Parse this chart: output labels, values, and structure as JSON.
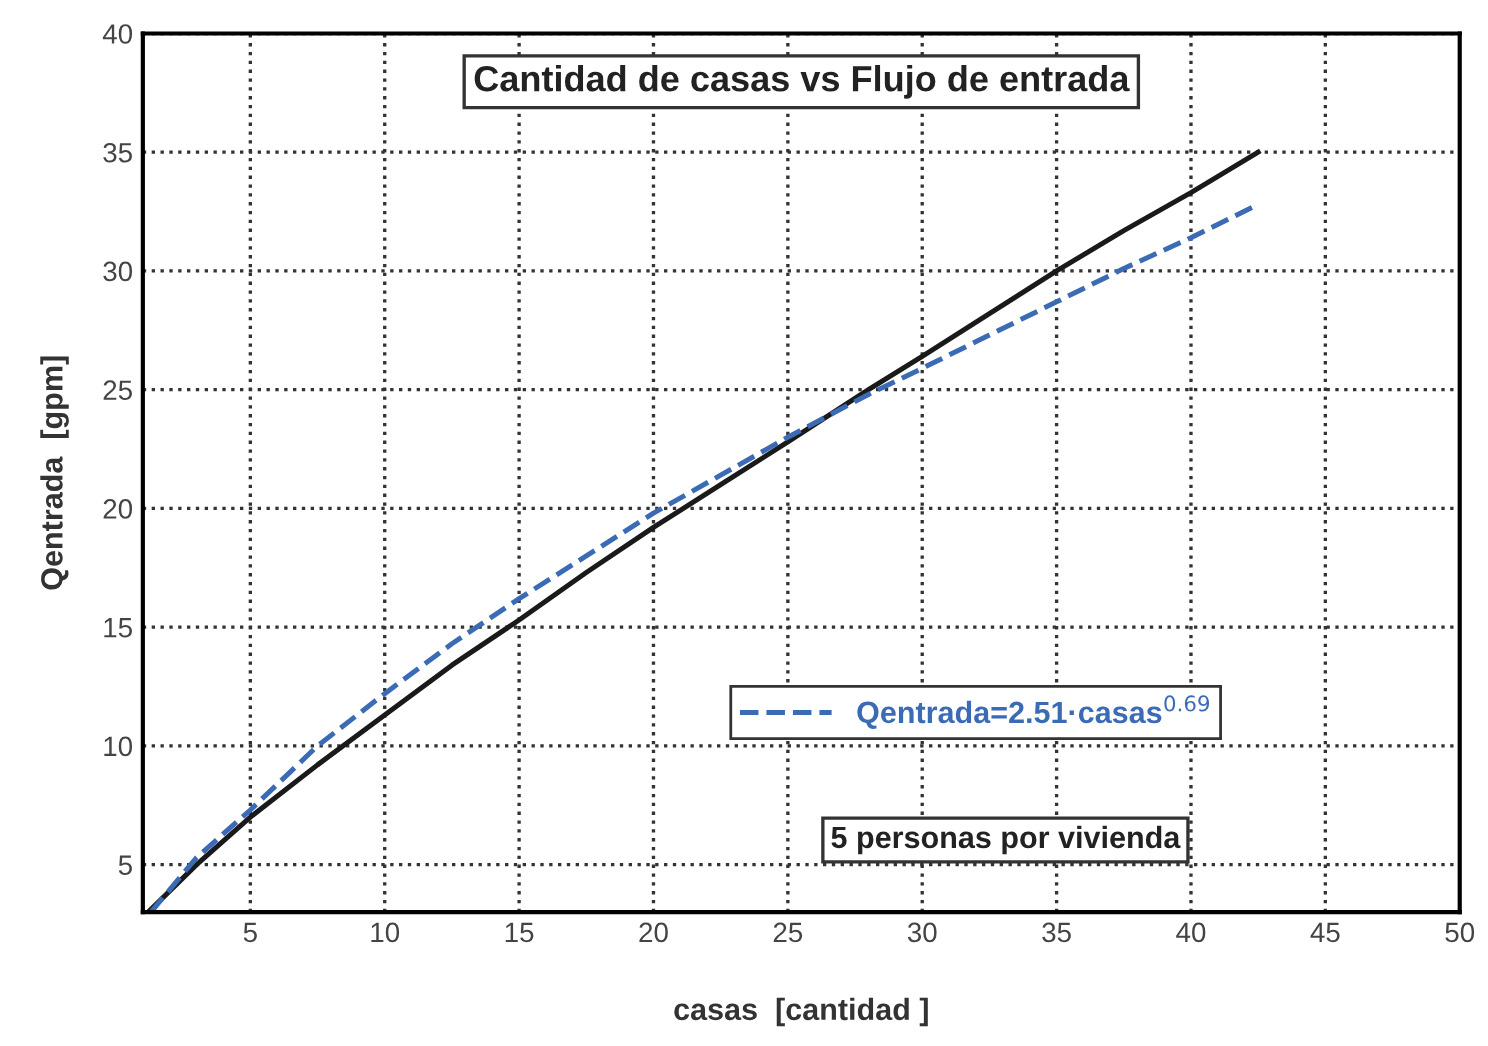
{
  "chart_data": {
    "type": "line",
    "title": "Cantidad de casas vs Flujo de entrada",
    "xlabel": "casas  [cantidad ]",
    "ylabel": "Qentrada  [gpm]",
    "series": [
      {
        "color": "#1a1a1a",
        "line_style": "solid",
        "x": [
          1.2,
          3,
          5,
          7.5,
          10,
          12.5,
          15,
          17.5,
          20,
          22.5,
          25,
          28,
          30,
          32.5,
          35,
          37.5,
          40,
          42.5
        ],
        "values": [
          3.0,
          5.0,
          7.0,
          9.2,
          11.3,
          13.4,
          15.3,
          17.3,
          19.2,
          21.0,
          22.8,
          25.0,
          26.4,
          28.2,
          30.0,
          31.7,
          33.3,
          35.0
        ]
      },
      {
        "name": "Qentrada=2.51·casas$^{0.69}$",
        "color": "#3b6bb5",
        "line_style": "dashed",
        "x": [
          1.3,
          3,
          5,
          7.5,
          10,
          12.5,
          15,
          17.5,
          20,
          22.5,
          25,
          28,
          30,
          32.5,
          35,
          37.5,
          40,
          42.5
        ],
        "values": [
          3.0,
          5.3,
          7.3,
          10.0,
          12.2,
          14.3,
          16.2,
          18.0,
          19.8,
          21.4,
          23.0,
          24.8,
          25.9,
          27.3,
          28.7,
          30.1,
          31.4,
          32.8
        ]
      }
    ],
    "xlim": [
      1,
      50
    ],
    "xticks": [
      5,
      10,
      15,
      20,
      25,
      30,
      35,
      40,
      45,
      50
    ],
    "ylim": [
      3,
      40
    ],
    "yticks": [
      5,
      10,
      15,
      20,
      25,
      30,
      35,
      40
    ],
    "grid": true,
    "legend": "bottom right",
    "marker": "none",
    "annotations": [
      "5 personas por vivienda"
    ]
  }
}
